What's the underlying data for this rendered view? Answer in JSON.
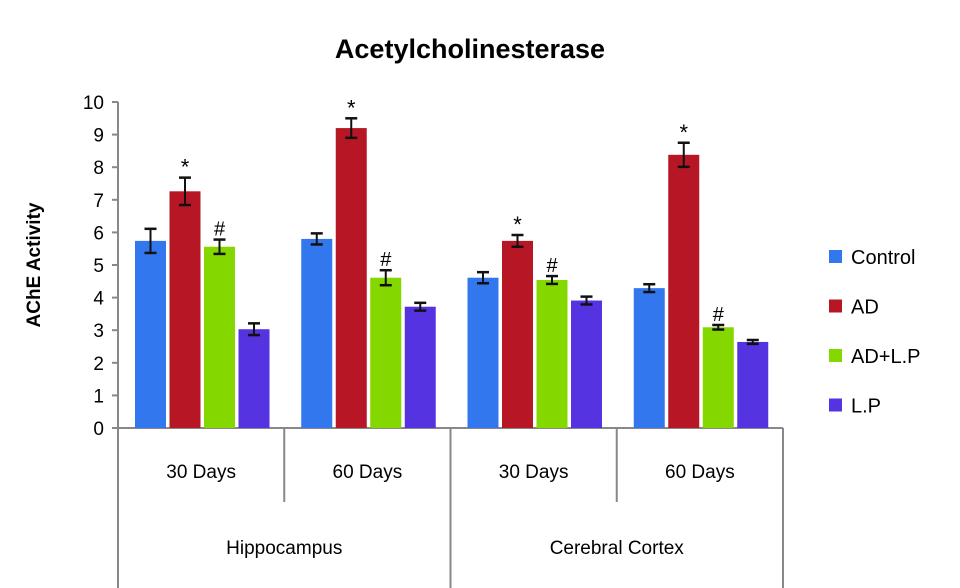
{
  "chart_data": {
    "type": "bar",
    "title": "Acetylcholinesterase",
    "xlabel": "",
    "ylabel": "AChE Activity",
    "ylim": [
      0,
      10
    ],
    "yticks": [
      "0",
      "1",
      "2",
      "3",
      "4",
      "5",
      "6",
      "7",
      "8",
      "9",
      "10"
    ],
    "grid": false,
    "legend_position": "right",
    "categories": [
      "30 Days",
      "60 Days",
      "30 Days",
      "60 Days"
    ],
    "category_groups": [
      {
        "label": "Hippocampus",
        "span": [
          0,
          1
        ]
      },
      {
        "label": "Cerebral Cortex",
        "span": [
          2,
          3
        ]
      }
    ],
    "series": [
      {
        "name": "Control",
        "color": "#3377ee",
        "values": [
          5.74,
          5.8,
          4.61,
          4.29
        ],
        "errors": [
          0.37,
          0.17,
          0.17,
          0.12
        ],
        "marks": [
          "",
          "",
          "",
          ""
        ]
      },
      {
        "name": "AD",
        "color": "#b71724",
        "values": [
          7.26,
          9.2,
          5.74,
          8.38
        ],
        "errors": [
          0.42,
          0.3,
          0.18,
          0.37
        ],
        "marks": [
          "*",
          "*",
          "*",
          "*"
        ]
      },
      {
        "name": "AD+L.P",
        "color": "#84d800",
        "values": [
          5.56,
          4.61,
          4.54,
          3.09
        ],
        "errors": [
          0.22,
          0.23,
          0.12,
          0.07
        ],
        "marks": [
          "#",
          "#",
          "#",
          "#"
        ]
      },
      {
        "name": "L.P",
        "color": "#5533e0",
        "values": [
          3.03,
          3.72,
          3.91,
          2.64
        ],
        "errors": [
          0.18,
          0.12,
          0.12,
          0.06
        ],
        "marks": [
          "",
          "",
          "",
          ""
        ]
      }
    ]
  }
}
